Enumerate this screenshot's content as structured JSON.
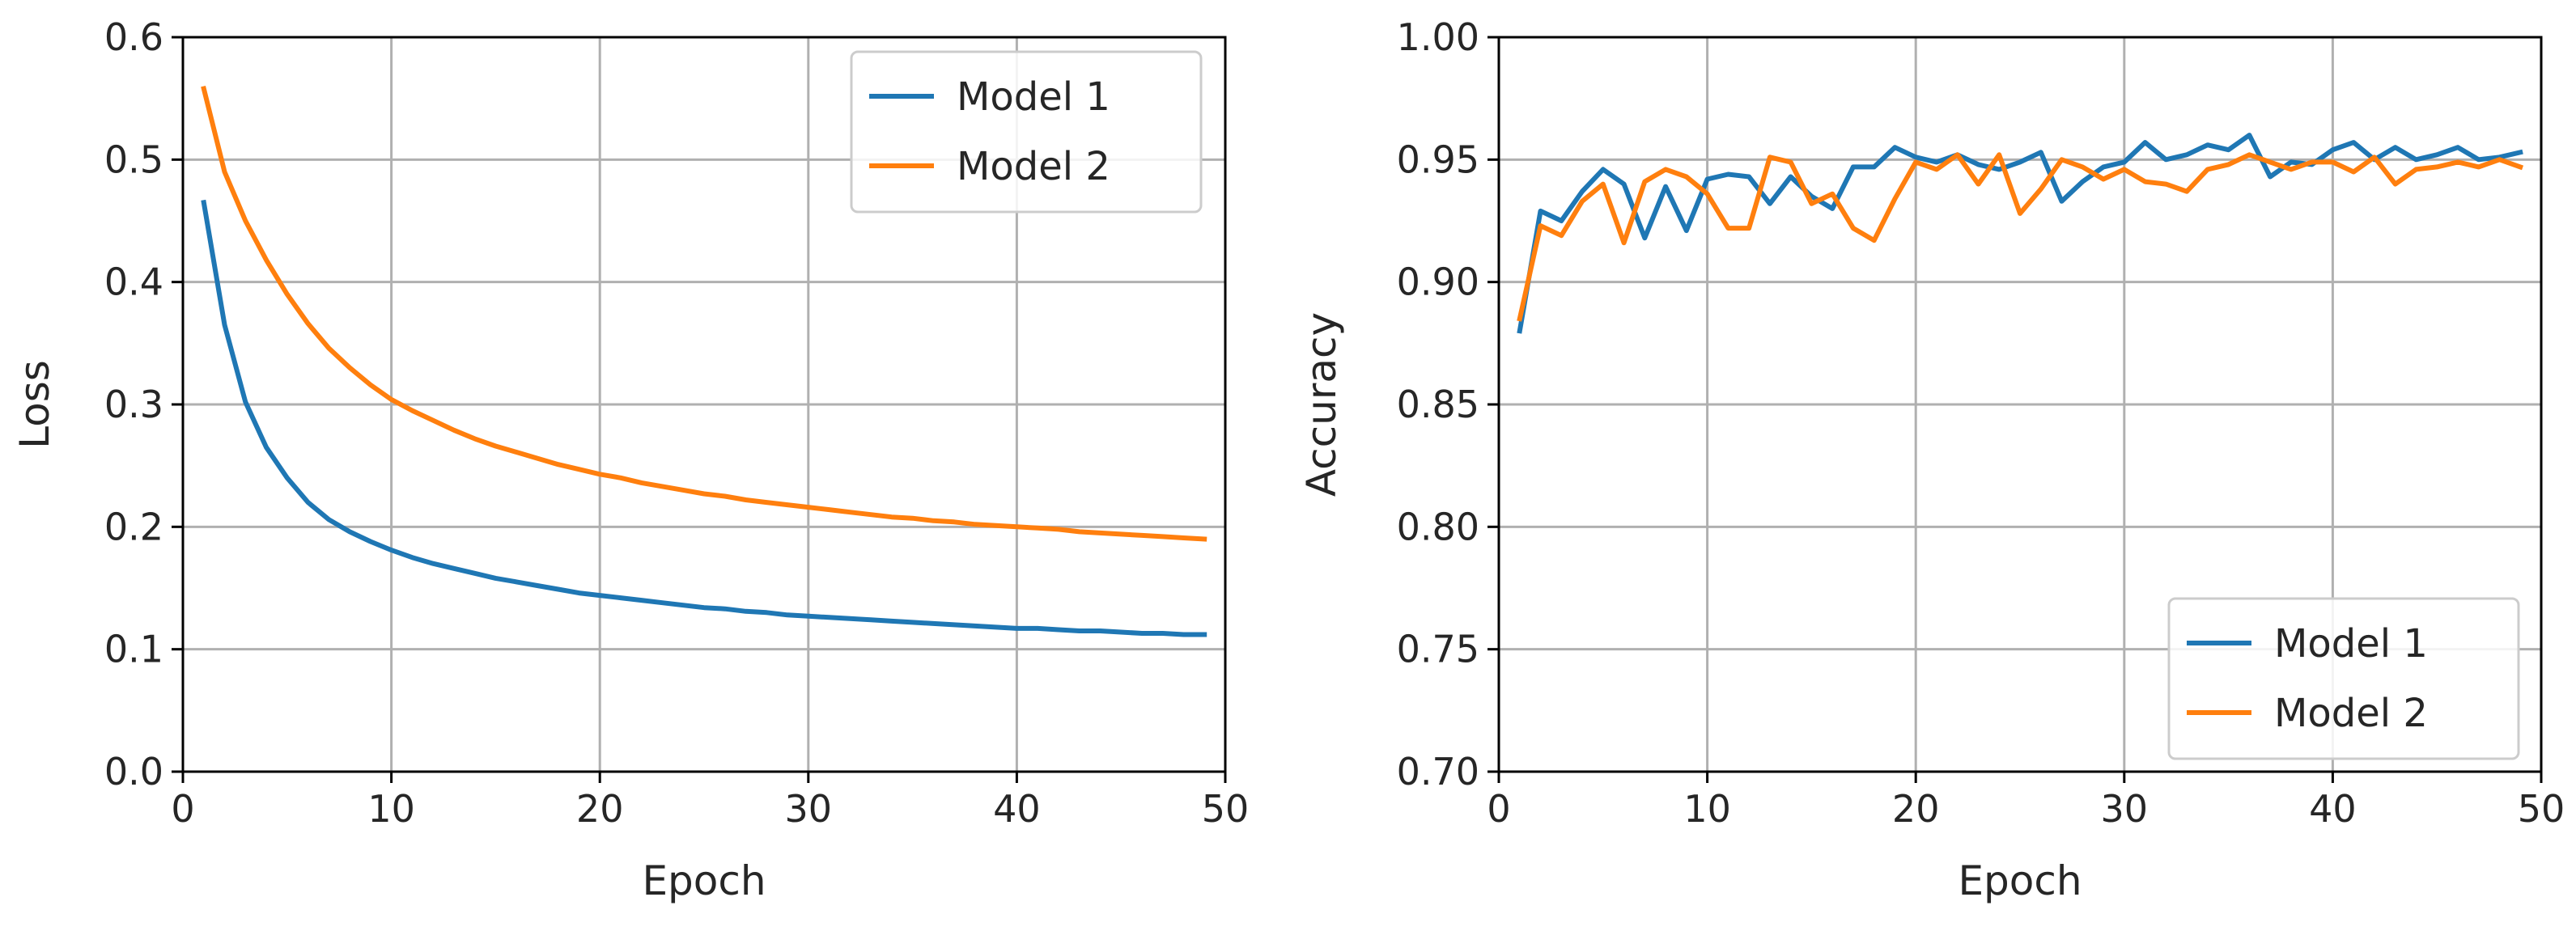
{
  "chart_data": [
    {
      "type": "line",
      "title": "",
      "xlabel": "Epoch",
      "ylabel": "Loss",
      "xlim": [
        0,
        50
      ],
      "ylim": [
        0,
        0.6
      ],
      "xticks": [
        0,
        10,
        20,
        30,
        40,
        50
      ],
      "xtick_labels": [
        "0",
        "10",
        "20",
        "30",
        "40",
        "50"
      ],
      "yticks": [
        0.0,
        0.1,
        0.2,
        0.3,
        0.4,
        0.5,
        0.6
      ],
      "ytick_labels": [
        "0.0",
        "0.1",
        "0.2",
        "0.3",
        "0.4",
        "0.5",
        "0.6"
      ],
      "grid": true,
      "legend_position": "top-right",
      "series": [
        {
          "name": "Model 1",
          "color": "#1f77b4",
          "x": [
            1,
            2,
            3,
            4,
            5,
            6,
            7,
            8,
            9,
            10,
            11,
            12,
            13,
            14,
            15,
            16,
            17,
            18,
            19,
            20,
            21,
            22,
            23,
            24,
            25,
            26,
            27,
            28,
            29,
            30,
            31,
            32,
            33,
            34,
            35,
            36,
            37,
            38,
            39,
            40,
            41,
            42,
            43,
            44,
            45,
            46,
            47,
            48,
            49
          ],
          "values": [
            0.465,
            0.365,
            0.302,
            0.265,
            0.24,
            0.22,
            0.206,
            0.196,
            0.188,
            0.181,
            0.175,
            0.17,
            0.166,
            0.162,
            0.158,
            0.155,
            0.152,
            0.149,
            0.146,
            0.144,
            0.142,
            0.14,
            0.138,
            0.136,
            0.134,
            0.133,
            0.131,
            0.13,
            0.128,
            0.127,
            0.126,
            0.125,
            0.124,
            0.123,
            0.122,
            0.121,
            0.12,
            0.119,
            0.118,
            0.117,
            0.117,
            0.116,
            0.115,
            0.115,
            0.114,
            0.113,
            0.113,
            0.112,
            0.112
          ]
        },
        {
          "name": "Model 2",
          "color": "#ff7f0e",
          "x": [
            1,
            2,
            3,
            4,
            5,
            6,
            7,
            8,
            9,
            10,
            11,
            12,
            13,
            14,
            15,
            16,
            17,
            18,
            19,
            20,
            21,
            22,
            23,
            24,
            25,
            26,
            27,
            28,
            29,
            30,
            31,
            32,
            33,
            34,
            35,
            36,
            37,
            38,
            39,
            40,
            41,
            42,
            43,
            44,
            45,
            46,
            47,
            48,
            49
          ],
          "values": [
            0.558,
            0.49,
            0.45,
            0.418,
            0.39,
            0.366,
            0.346,
            0.33,
            0.316,
            0.304,
            0.295,
            0.287,
            0.279,
            0.272,
            0.266,
            0.261,
            0.256,
            0.251,
            0.247,
            0.243,
            0.24,
            0.236,
            0.233,
            0.23,
            0.227,
            0.225,
            0.222,
            0.22,
            0.218,
            0.216,
            0.214,
            0.212,
            0.21,
            0.208,
            0.207,
            0.205,
            0.204,
            0.202,
            0.201,
            0.2,
            0.199,
            0.198,
            0.196,
            0.195,
            0.194,
            0.193,
            0.192,
            0.191,
            0.19
          ]
        }
      ]
    },
    {
      "type": "line",
      "title": "",
      "xlabel": "Epoch",
      "ylabel": "Accuracy",
      "xlim": [
        0,
        50
      ],
      "ylim": [
        0.7,
        1.0
      ],
      "xticks": [
        0,
        10,
        20,
        30,
        40,
        50
      ],
      "xtick_labels": [
        "0",
        "10",
        "20",
        "30",
        "40",
        "50"
      ],
      "yticks": [
        0.7,
        0.75,
        0.8,
        0.85,
        0.9,
        0.95,
        1.0
      ],
      "ytick_labels": [
        "0.70",
        "0.75",
        "0.80",
        "0.85",
        "0.90",
        "0.95",
        "1.00"
      ],
      "grid": true,
      "legend_position": "bottom-right",
      "series": [
        {
          "name": "Model 1",
          "color": "#1f77b4",
          "x": [
            1,
            2,
            3,
            4,
            5,
            6,
            7,
            8,
            9,
            10,
            11,
            12,
            13,
            14,
            15,
            16,
            17,
            18,
            19,
            20,
            21,
            22,
            23,
            24,
            25,
            26,
            27,
            28,
            29,
            30,
            31,
            32,
            33,
            34,
            35,
            36,
            37,
            38,
            39,
            40,
            41,
            42,
            43,
            44,
            45,
            46,
            47,
            48,
            49
          ],
          "values": [
            0.88,
            0.929,
            0.925,
            0.937,
            0.946,
            0.94,
            0.918,
            0.939,
            0.921,
            0.942,
            0.944,
            0.943,
            0.932,
            0.943,
            0.935,
            0.93,
            0.947,
            0.947,
            0.955,
            0.951,
            0.949,
            0.952,
            0.948,
            0.946,
            0.949,
            0.953,
            0.933,
            0.941,
            0.947,
            0.949,
            0.957,
            0.95,
            0.952,
            0.956,
            0.954,
            0.96,
            0.943,
            0.949,
            0.948,
            0.954,
            0.957,
            0.95,
            0.955,
            0.95,
            0.952,
            0.955,
            0.95,
            0.951,
            0.953
          ]
        },
        {
          "name": "Model 2",
          "color": "#ff7f0e",
          "x": [
            1,
            2,
            3,
            4,
            5,
            6,
            7,
            8,
            9,
            10,
            11,
            12,
            13,
            14,
            15,
            16,
            17,
            18,
            19,
            20,
            21,
            22,
            23,
            24,
            25,
            26,
            27,
            28,
            29,
            30,
            31,
            32,
            33,
            34,
            35,
            36,
            37,
            38,
            39,
            40,
            41,
            42,
            43,
            44,
            45,
            46,
            47,
            48,
            49
          ],
          "values": [
            0.885,
            0.923,
            0.919,
            0.933,
            0.94,
            0.916,
            0.941,
            0.946,
            0.943,
            0.936,
            0.922,
            0.922,
            0.951,
            0.949,
            0.932,
            0.936,
            0.922,
            0.917,
            0.934,
            0.949,
            0.946,
            0.952,
            0.94,
            0.952,
            0.928,
            0.938,
            0.95,
            0.947,
            0.942,
            0.946,
            0.941,
            0.94,
            0.937,
            0.946,
            0.948,
            0.952,
            0.949,
            0.946,
            0.949,
            0.949,
            0.945,
            0.951,
            0.94,
            0.946,
            0.947,
            0.949,
            0.947,
            0.95,
            0.947
          ]
        }
      ]
    }
  ]
}
